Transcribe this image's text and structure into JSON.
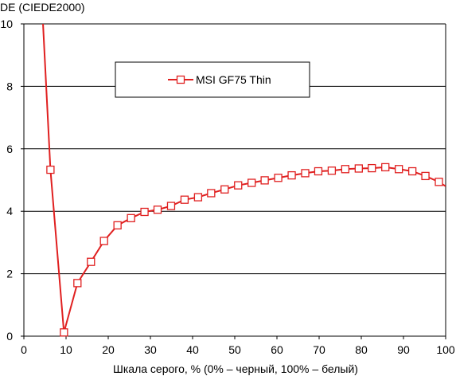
{
  "chart_data": {
    "type": "line",
    "ylabel": "DE (CIEDE2000)",
    "xlabel": "Шкала серого, % (0% – черный, 100% – белый)",
    "xlim": [
      0,
      100
    ],
    "ylim": [
      0,
      10
    ],
    "xticks": [
      0,
      10,
      20,
      30,
      40,
      50,
      60,
      70,
      80,
      90,
      100
    ],
    "yticks": [
      0,
      2,
      4,
      6,
      8,
      10
    ],
    "grid": "horizontal",
    "legend_position": "top-center",
    "series": [
      {
        "name": "MSI GF75 Thin",
        "color": "#e02020",
        "marker": "open-square",
        "x": [
          4.5,
          6.3,
          9.5,
          12.7,
          15.9,
          19.0,
          22.2,
          25.4,
          28.6,
          31.7,
          34.9,
          38.1,
          41.3,
          44.4,
          47.6,
          50.8,
          54.0,
          57.1,
          60.3,
          63.5,
          66.7,
          69.8,
          73.0,
          76.2,
          79.4,
          82.5,
          85.7,
          88.9,
          92.1,
          95.2,
          98.4,
          100.0
        ],
        "y": [
          10.1,
          5.33,
          0.12,
          1.7,
          2.38,
          3.05,
          3.55,
          3.78,
          3.98,
          4.05,
          4.17,
          4.37,
          4.45,
          4.58,
          4.7,
          4.83,
          4.91,
          4.99,
          5.07,
          5.15,
          5.22,
          5.28,
          5.3,
          5.35,
          5.37,
          5.38,
          5.41,
          5.35,
          5.28,
          5.13,
          4.94,
          4.8
        ],
        "marker_x": [
          6.3,
          9.5,
          12.7,
          15.9,
          19.0,
          22.2,
          25.4,
          28.6,
          31.7,
          34.9,
          38.1,
          41.3,
          44.4,
          47.6,
          50.8,
          54.0,
          57.1,
          60.3,
          63.5,
          66.7,
          69.8,
          73.0,
          76.2,
          79.4,
          82.5,
          85.7,
          88.9,
          92.1,
          95.2,
          98.4
        ],
        "marker_y": [
          5.33,
          0.12,
          1.7,
          2.38,
          3.05,
          3.55,
          3.78,
          3.98,
          4.05,
          4.17,
          4.37,
          4.45,
          4.58,
          4.7,
          4.83,
          4.91,
          4.99,
          5.07,
          5.15,
          5.22,
          5.28,
          5.3,
          5.35,
          5.37,
          5.38,
          5.41,
          5.35,
          5.28,
          5.13,
          4.94
        ]
      }
    ]
  }
}
